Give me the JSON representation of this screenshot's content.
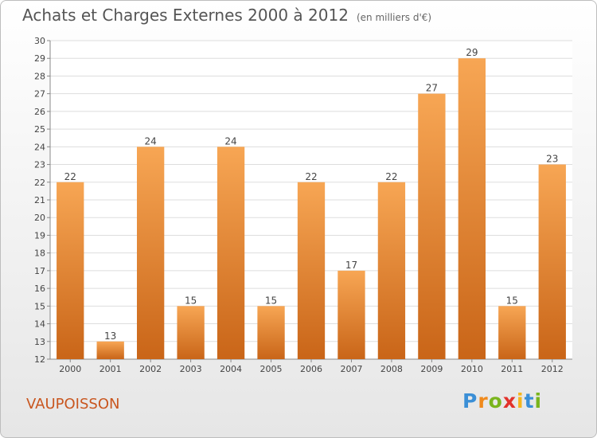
{
  "header": {
    "title": "Achats et Charges Externes 2000 à 2012",
    "subtitle": "(en milliers d'€)"
  },
  "footer": {
    "place": "VAUPOISSON",
    "logo_letters": [
      {
        "ch": "P",
        "color": "#3b8fd6"
      },
      {
        "ch": "r",
        "color": "#f08a1c"
      },
      {
        "ch": "o",
        "color": "#7ab51d"
      },
      {
        "ch": "x",
        "color": "#e2322b"
      },
      {
        "ch": "i",
        "color": "#f6b61c"
      },
      {
        "ch": "t",
        "color": "#3b8fd6"
      },
      {
        "ch": "i",
        "color": "#7ab51d"
      }
    ]
  },
  "chart_data": {
    "type": "bar",
    "categories": [
      "2000",
      "2001",
      "2002",
      "2003",
      "2004",
      "2005",
      "2006",
      "2007",
      "2008",
      "2009",
      "2010",
      "2011",
      "2012"
    ],
    "values": [
      22,
      13,
      24,
      15,
      24,
      15,
      22,
      17,
      22,
      27,
      29,
      15,
      23
    ],
    "ylim": [
      12,
      30
    ],
    "yticks": [
      12,
      13,
      14,
      15,
      16,
      17,
      18,
      19,
      20,
      21,
      22,
      23,
      24,
      25,
      26,
      27,
      28,
      29,
      30
    ],
    "grid": true,
    "bar_color_top": "#f7a654",
    "bar_color_bottom": "#c96518"
  }
}
